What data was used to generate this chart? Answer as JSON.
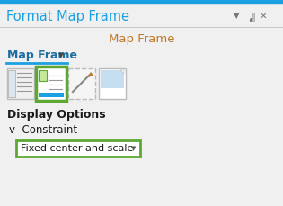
{
  "panel_bg": "#f0f0f0",
  "top_bar_color": "#1ba1e2",
  "top_bar_height": 4,
  "title_text": "Format Map Frame",
  "title_color": "#1ba1e2",
  "title_fontsize": 10.5,
  "subtitle_text": "Map Frame",
  "subtitle_color": "#c07828",
  "subtitle_fontsize": 9.5,
  "tab_text": "Map Frame",
  "tab_color": "#1e6ea0",
  "tab_fontsize": 9,
  "tab_underline_color": "#1ba1e2",
  "section_text": "Display Options",
  "section_color": "#1a1a1a",
  "section_fontsize": 9,
  "constraint_label": "v  Constraint",
  "constraint_color": "#1a1a1a",
  "constraint_fontsize": 8.5,
  "dropdown_text": "Fixed center and scale",
  "dropdown_color": "#1a1a1a",
  "dropdown_fontsize": 8,
  "dropdown_border_color": "#5ca832",
  "icon_border_color": "#5ca832",
  "corner_color": "#777777",
  "separator_color": "#c8c8c8",
  "icon_bg": "#f5f5f5",
  "icon_border": "#c0c0c0",
  "selected_icon_bg": "#ffffff",
  "dashed_icon_border": "#bbbbbb"
}
